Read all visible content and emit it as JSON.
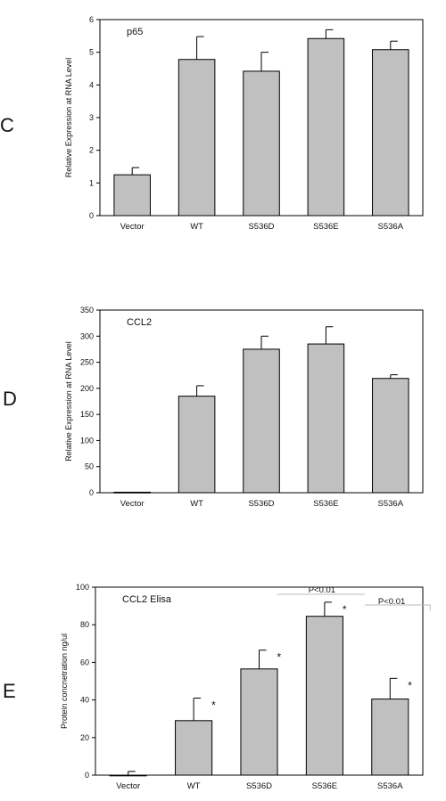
{
  "panels": [
    {
      "letter": "C"
    },
    {
      "letter": "D"
    },
    {
      "letter": "E"
    }
  ],
  "chart_data": [
    {
      "type": "bar",
      "inset_title": "p65",
      "ylabel": "Relative Expression at RNA Level",
      "xlabel": "",
      "categories": [
        "Vector",
        "WT",
        "S536D",
        "S536E",
        "S536A"
      ],
      "values": [
        1.25,
        4.78,
        4.42,
        5.42,
        5.08
      ],
      "errors": [
        0.22,
        0.7,
        0.58,
        0.27,
        0.26
      ],
      "ylim": [
        0,
        6
      ],
      "yticks": [
        0,
        1,
        2,
        3,
        4,
        5,
        6
      ],
      "bar_color": "#c0c0c0",
      "grid": false,
      "annotations": []
    },
    {
      "type": "bar",
      "inset_title": "CCL2",
      "ylabel": "Relative Expression at RNA Level",
      "xlabel": "",
      "categories": [
        "Vector",
        "WT",
        "S536D",
        "S536E",
        "S536A"
      ],
      "values": [
        1,
        185,
        275,
        285,
        219
      ],
      "errors": [
        0,
        20,
        25,
        33,
        7
      ],
      "ylim": [
        0,
        350
      ],
      "yticks": [
        0,
        50,
        100,
        150,
        200,
        250,
        300,
        350
      ],
      "bar_color": "#c0c0c0",
      "grid": false,
      "annotations": []
    },
    {
      "type": "bar",
      "inset_title": "CCL2 Elisa",
      "ylabel": "Protein concnetration ng/ul",
      "xlabel": "",
      "categories": [
        "Vector",
        "WT",
        "S536D",
        "S536E",
        "S536A"
      ],
      "values": [
        0,
        29,
        56.5,
        84.5,
        40.5
      ],
      "errors": [
        2,
        12,
        10,
        7.5,
        11
      ],
      "ylim": [
        0,
        100
      ],
      "yticks": [
        0,
        20,
        40,
        60,
        80,
        100
      ],
      "bar_color": "#c0c0c0",
      "grid": false,
      "significance_marks": [
        "",
        "*",
        "*",
        "*",
        "*"
      ],
      "annotations": [
        "P<0.01",
        "P<0.01"
      ]
    }
  ]
}
